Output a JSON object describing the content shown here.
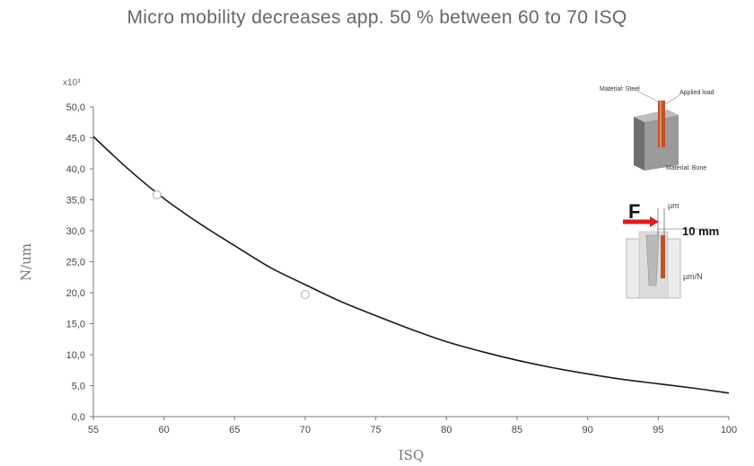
{
  "chart_data": {
    "type": "line",
    "title": "Micro mobility decreases app. 50 % between 60 to 70 ISQ",
    "xlabel": "ISQ",
    "ylabel": "N/um",
    "y_multiplier": "x10³",
    "xlim": [
      55,
      100
    ],
    "ylim": [
      0,
      50
    ],
    "x_ticks": [
      "55",
      "60",
      "65",
      "70",
      "75",
      "80",
      "85",
      "90",
      "95",
      "100"
    ],
    "y_ticks": [
      "0,0",
      "5,0",
      "10,0",
      "15,0",
      "20,0",
      "25,0",
      "30,0",
      "35,0",
      "40,0",
      "45,0",
      "50,0"
    ],
    "grid": false,
    "series": [
      {
        "x": [
          55,
          57.5,
          60,
          62.5,
          65,
          67.5,
          70,
          72.5,
          75,
          77.5,
          80,
          82.5,
          85,
          87.5,
          90,
          92.5,
          95,
          97.5,
          100
        ],
        "y": [
          45.2,
          39.9,
          35.2,
          31.2,
          27.6,
          24.1,
          21.3,
          18.6,
          16.3,
          14.1,
          12.1,
          10.5,
          9.1,
          7.9,
          6.9,
          6.0,
          5.3,
          4.6,
          3.8
        ]
      }
    ],
    "markers": [
      {
        "x": 59.5,
        "y": 35.8
      },
      {
        "x": 70.0,
        "y": 19.7
      }
    ]
  },
  "inset": {
    "label_steel": "Material: Steel",
    "label_load": "Applied load",
    "label_bone": "Material: Bone",
    "force_label": "F",
    "um_label": "µm",
    "distance_label": "10 mm",
    "um_per_n_label": "µm/N"
  },
  "colors": {
    "curve": "#1a1a1a",
    "implant": "#c0522a",
    "arrow": "#d62020",
    "block": "#8a8a8a"
  }
}
